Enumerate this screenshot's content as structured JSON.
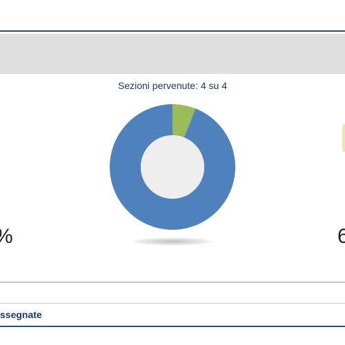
{
  "panel": {
    "sections_received_label": "Sezioni pervenute: 4 su 4",
    "left_value_fragment": "%",
    "right_value_fragment": "6",
    "bottom_label_fragment": "ssegnate"
  },
  "chart_data": {
    "type": "pie",
    "variant": "donut",
    "slices": [
      {
        "value": 94,
        "color": "#4f81bd"
      },
      {
        "value": 6,
        "color": "#9bbb59"
      }
    ],
    "hole_color": "#eeeeee"
  }
}
